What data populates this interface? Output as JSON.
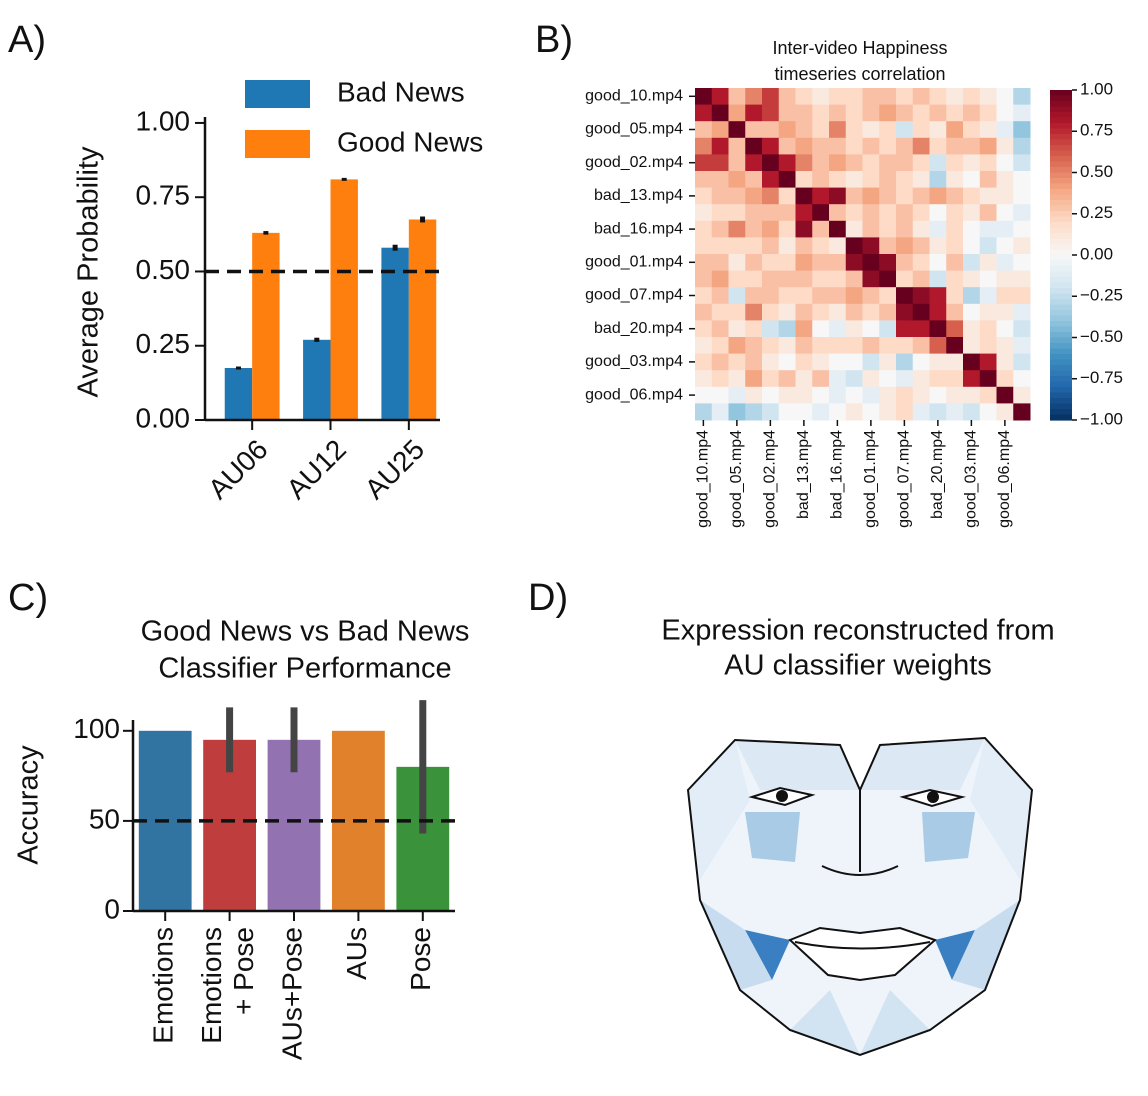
{
  "chart_data": [
    {
      "type": "bar",
      "panel": "A)",
      "ylabel": "Average Probability",
      "categories": [
        "AU06",
        "AU12",
        "AU25"
      ],
      "series": [
        {
          "name": "Bad News",
          "color": "#1f77b4",
          "values": [
            0.175,
            0.27,
            0.58
          ],
          "errors": [
            0.005,
            0.007,
            0.01
          ]
        },
        {
          "name": "Good News",
          "color": "#ff7f0e",
          "values": [
            0.63,
            0.81,
            0.675
          ],
          "errors": [
            0.006,
            0.005,
            0.01
          ]
        }
      ],
      "ylim": [
        0,
        1.02
      ],
      "yticks": [
        {
          "value": 0,
          "label": "0.00"
        },
        {
          "value": 0.25,
          "label": "0.25"
        },
        {
          "value": 0.5,
          "label": "0.50"
        },
        {
          "value": 0.75,
          "label": "0.75"
        },
        {
          "value": 1,
          "label": "1.00"
        }
      ],
      "hline": 0.5,
      "legend": "upper right"
    },
    {
      "type": "heatmap",
      "panel": "B)",
      "title": [
        "Inter-video Happiness",
        "timeseries correlation"
      ],
      "categories": [
        "good_10.mp4",
        null,
        "good_05.mp4",
        null,
        "good_02.mp4",
        null,
        "bad_13.mp4",
        null,
        "bad_16.mp4",
        null,
        "good_01.mp4",
        null,
        "good_07.mp4",
        null,
        "bad_20.mp4",
        null,
        "good_03.mp4",
        null,
        "good_06.mp4",
        null
      ],
      "values": [
        [
          1,
          0.8,
          0.3,
          0.5,
          0.7,
          0.3,
          0.2,
          0.1,
          0.2,
          0.2,
          0.3,
          0.3,
          0.2,
          0.3,
          0.2,
          0.1,
          0.2,
          0.1,
          0.0,
          -0.3
        ],
        [
          0.8,
          1,
          0.4,
          0.8,
          0.7,
          0.3,
          0.3,
          0.2,
          0.3,
          0.2,
          0.3,
          0.4,
          0.3,
          0.2,
          0.3,
          0.2,
          0.3,
          0.2,
          0.0,
          -0.1
        ],
        [
          0.3,
          0.4,
          1,
          0.3,
          0.3,
          0.4,
          0.3,
          0.2,
          0.5,
          0.2,
          0.1,
          0.2,
          -0.2,
          0.2,
          0.1,
          0.4,
          0.2,
          0.1,
          -0.1,
          -0.4
        ],
        [
          0.5,
          0.8,
          0.3,
          1,
          0.8,
          0.3,
          0.4,
          0.3,
          0.3,
          0.2,
          0.3,
          0.2,
          0.3,
          0.5,
          0.2,
          0.3,
          0.3,
          0.4,
          0.1,
          -0.3
        ],
        [
          0.7,
          0.7,
          0.3,
          0.8,
          1,
          0.8,
          0.5,
          0.3,
          0.4,
          0.3,
          0.2,
          0.3,
          0.3,
          0.2,
          -0.2,
          0.2,
          0.1,
          0.2,
          0.0,
          -0.2
        ],
        [
          0.3,
          0.3,
          0.4,
          0.3,
          0.8,
          1,
          0.2,
          0.3,
          0.2,
          0.1,
          0.2,
          0.3,
          0.2,
          0.1,
          -0.3,
          0.1,
          0.0,
          0.3,
          0.1,
          0.0
        ],
        [
          0.2,
          0.3,
          0.3,
          0.4,
          0.5,
          0.2,
          1,
          0.8,
          0.9,
          0.3,
          0.4,
          0.3,
          0.2,
          0.3,
          0.4,
          0.3,
          0.2,
          0.1,
          0.1,
          0.0
        ],
        [
          0.1,
          0.2,
          0.2,
          0.3,
          0.3,
          0.3,
          0.8,
          1,
          0.3,
          0.2,
          0.3,
          0.2,
          0.3,
          0.2,
          0.0,
          0.2,
          0.1,
          0.3,
          0.0,
          -0.1
        ],
        [
          0.2,
          0.3,
          0.5,
          0.3,
          0.4,
          0.2,
          0.9,
          0.3,
          1,
          0.1,
          0.3,
          0.2,
          0.3,
          0.1,
          -0.1,
          0.2,
          0.0,
          -0.1,
          -0.1,
          0.0
        ],
        [
          0.2,
          0.2,
          0.2,
          0.2,
          0.3,
          0.1,
          0.3,
          0.2,
          0.1,
          1,
          0.9,
          0.3,
          0.4,
          0.3,
          0.1,
          0.2,
          0.0,
          -0.2,
          0.0,
          0.1
        ],
        [
          0.3,
          0.3,
          0.1,
          0.3,
          0.2,
          0.2,
          0.4,
          0.3,
          0.3,
          0.9,
          1,
          0.9,
          0.3,
          0.2,
          0.0,
          0.3,
          -0.2,
          0.1,
          -0.1,
          0.0
        ],
        [
          0.3,
          0.4,
          0.2,
          0.2,
          0.3,
          0.3,
          0.3,
          0.2,
          0.2,
          0.3,
          0.9,
          1,
          0.2,
          0.3,
          -0.2,
          0.2,
          0.1,
          0.0,
          0.1,
          0.1
        ],
        [
          0.2,
          0.3,
          -0.2,
          0.3,
          0.3,
          0.2,
          0.2,
          0.3,
          0.3,
          0.4,
          0.3,
          0.2,
          1,
          0.9,
          0.8,
          0.2,
          -0.3,
          -0.1,
          0.2,
          0.2
        ],
        [
          0.3,
          0.2,
          0.2,
          0.5,
          0.2,
          0.1,
          0.3,
          0.2,
          0.1,
          0.3,
          0.2,
          0.3,
          0.9,
          1,
          0.8,
          0.3,
          0.0,
          0.1,
          0.1,
          -0.1
        ],
        [
          0.2,
          0.3,
          0.1,
          0.2,
          -0.2,
          -0.3,
          0.4,
          0.0,
          -0.1,
          0.1,
          0.0,
          -0.2,
          0.8,
          0.8,
          1,
          0.6,
          0.1,
          0.2,
          0.0,
          -0.2
        ],
        [
          0.1,
          0.2,
          0.4,
          0.3,
          0.2,
          0.1,
          0.3,
          0.2,
          0.2,
          0.2,
          0.3,
          0.2,
          0.2,
          0.3,
          0.6,
          1,
          0.1,
          0.2,
          0.1,
          -0.1
        ],
        [
          0.2,
          0.3,
          0.2,
          0.3,
          0.1,
          0.0,
          0.2,
          0.1,
          0.0,
          0.0,
          -0.2,
          0.1,
          -0.3,
          0.0,
          0.1,
          0.1,
          1,
          0.8,
          0.1,
          -0.2
        ],
        [
          0.1,
          0.2,
          0.1,
          0.4,
          0.2,
          0.3,
          0.1,
          0.3,
          -0.1,
          -0.2,
          0.1,
          0.0,
          -0.1,
          0.1,
          0.2,
          0.2,
          0.8,
          1,
          0.2,
          0.0
        ],
        [
          0.0,
          0.0,
          -0.1,
          0.1,
          0.0,
          0.1,
          0.1,
          0.0,
          -0.1,
          0.0,
          -0.1,
          0.1,
          0.2,
          0.1,
          0.0,
          0.1,
          0.1,
          0.2,
          1,
          0.1
        ],
        [
          -0.3,
          -0.1,
          -0.4,
          -0.3,
          -0.2,
          0.0,
          0.0,
          -0.1,
          0.0,
          0.1,
          0.0,
          0.1,
          0.2,
          -0.1,
          -0.2,
          -0.1,
          -0.2,
          0.0,
          0.1,
          1
        ]
      ],
      "clim": [
        -1,
        1
      ],
      "colormap": "RdBu_r",
      "colorbar_ticks": [
        {
          "value": 1,
          "label": "1.00"
        },
        {
          "value": 0.75,
          "label": "0.75"
        },
        {
          "value": 0.5,
          "label": "0.50"
        },
        {
          "value": 0.25,
          "label": "0.25"
        },
        {
          "value": 0,
          "label": "0.00"
        },
        {
          "value": -0.25,
          "label": "−0.25"
        },
        {
          "value": -0.5,
          "label": "−0.50"
        },
        {
          "value": -0.75,
          "label": "−0.75"
        },
        {
          "value": -1,
          "label": "−1.00"
        }
      ]
    },
    {
      "type": "bar",
      "panel": "C)",
      "title": [
        "Good News vs Bad News",
        "Classifier Performance"
      ],
      "ylabel": "Accuracy",
      "categories": [
        [
          "Emotions"
        ],
        [
          "Emotions",
          "+ Pose"
        ],
        [
          "AUs+Pose"
        ],
        [
          "AUs"
        ],
        [
          "Pose"
        ]
      ],
      "values": [
        100,
        95,
        95,
        100,
        80
      ],
      "errors": [
        0,
        18,
        18,
        0,
        37
      ],
      "colors": [
        "#3274a1",
        "#c03d3e",
        "#9372b2",
        "#e1812c",
        "#3a923a"
      ],
      "ylim": [
        0,
        106
      ],
      "yticks": [
        0,
        50,
        100
      ],
      "hline": 50
    }
  ],
  "panel_d": {
    "label": "D)",
    "title": [
      "Expression reconstructed from",
      "AU classifier weights"
    ]
  }
}
